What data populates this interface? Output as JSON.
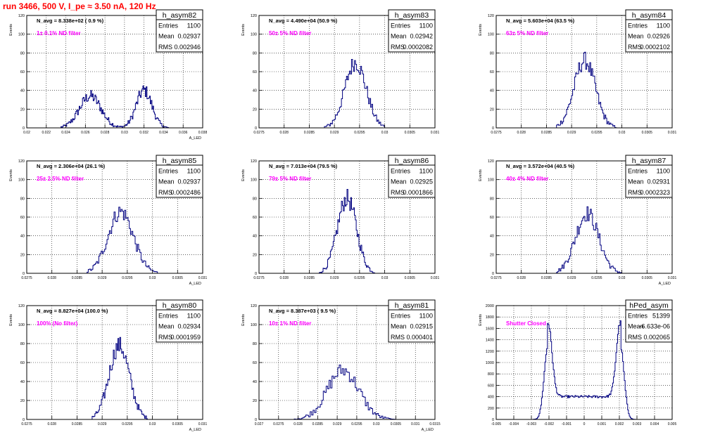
{
  "header": {
    "title": "run 3466,   500 V, I_pe ≈ 3.50 nA, 120 Hz"
  },
  "colors": {
    "histogram_line": "#000080",
    "annotation": "#ff00ff",
    "title_red": "#ff0000",
    "grid": "#000000"
  },
  "chart_data": [
    {
      "type": "bar",
      "name": "h_asym82",
      "stats": {
        "entries_label": "Entries",
        "entries": "1100",
        "mean_label": "Mean",
        "mean": "0.02937",
        "rms_label": "RMS",
        "rms": "0.002946"
      },
      "navg": "N_avg = 8.338e+02 ( 0.9 %)",
      "annotation": "1± 0.1% ND filter",
      "ylabel": "Events",
      "xlabel": "A_LED",
      "xlim": [
        0.02,
        0.038
      ],
      "ylim": [
        0,
        120
      ],
      "grid": true,
      "yticks": [
        0,
        20,
        40,
        60,
        80,
        100,
        120
      ],
      "xticks": [
        0.02,
        0.022,
        0.024,
        0.026,
        0.028,
        0.03,
        0.032,
        0.034,
        0.036,
        0.038
      ],
      "xtick_labels": [
        "0.02",
        "0.022",
        "0.024",
        "0.026",
        "0.028",
        "0.03",
        "0.032",
        "0.034",
        "0.036",
        "0.038"
      ],
      "dist": [
        {
          "mu": 0.0265,
          "sig": 0.0011,
          "a": 34
        },
        {
          "mu": 0.032,
          "sig": 0.0008,
          "a": 40
        }
      ],
      "range": [
        0.0235,
        0.0345
      ],
      "nbins": 130
    },
    {
      "type": "bar",
      "name": "h_asym83",
      "stats": {
        "entries_label": "Entries",
        "entries": "1100",
        "mean_label": "Mean",
        "mean": "0.02942",
        "rms_label": "RMS",
        "rms": "0.0002082"
      },
      "navg": "N_avg = 4.490e+04 (50.9 %)",
      "annotation": "50± 5% ND filter",
      "ylabel": "Events",
      "xlabel": "",
      "xlim": [
        0.0275,
        0.031
      ],
      "ylim": [
        0,
        120
      ],
      "grid": true,
      "yticks": [
        0,
        20,
        40,
        60,
        80,
        100,
        120
      ],
      "xticks": [
        0.0275,
        0.028,
        0.0285,
        0.029,
        0.0295,
        0.03,
        0.0305,
        0.031
      ],
      "xtick_labels": [
        "0.0275",
        "0.028",
        "0.0285",
        "0.029",
        "0.0295",
        "0.03",
        "0.0305",
        "0.031"
      ],
      "dist": [
        {
          "mu": 0.02942,
          "sig": 0.00021,
          "a": 70
        }
      ],
      "range": [
        0.0288,
        0.03
      ],
      "nbins": 60
    },
    {
      "type": "bar",
      "name": "h_asym84",
      "stats": {
        "entries_label": "Entries",
        "entries": "1100",
        "mean_label": "Mean",
        "mean": "0.02926",
        "rms_label": "RMS",
        "rms": "0.0002102"
      },
      "navg": "N_avg = 5.603e+04 (63.5 %)",
      "annotation": "63± 5% ND filter",
      "ylabel": "Events",
      "xlabel": "",
      "xlim": [
        0.0275,
        0.031
      ],
      "ylim": [
        0,
        120
      ],
      "grid": true,
      "yticks": [
        0,
        20,
        40,
        60,
        80,
        100,
        120
      ],
      "xticks": [
        0.0275,
        0.028,
        0.0285,
        0.029,
        0.0295,
        0.03,
        0.0305,
        0.031
      ],
      "xtick_labels": [
        "0.0275",
        "0.028",
        "0.0285",
        "0.029",
        "0.0295",
        "0.03",
        "0.0305",
        "0.031"
      ],
      "dist": [
        {
          "mu": 0.02926,
          "sig": 0.00021,
          "a": 72
        }
      ],
      "range": [
        0.0287,
        0.0299
      ],
      "nbins": 60
    },
    {
      "type": "bar",
      "name": "h_asym85",
      "stats": {
        "entries_label": "Entries",
        "entries": "1100",
        "mean_label": "Mean",
        "mean": "0.02937",
        "rms_label": "RMS",
        "rms": "0.0002486"
      },
      "navg": "N_avg = 2.306e+04 (26.1 %)",
      "annotation": "25± 2.5% ND filter",
      "ylabel": "Events",
      "xlabel": "A_LED",
      "xlim": [
        0.0275,
        0.031
      ],
      "ylim": [
        0,
        120
      ],
      "grid": true,
      "yticks": [
        0,
        20,
        40,
        60,
        80,
        100,
        120
      ],
      "xticks": [
        0.0275,
        0.028,
        0.0285,
        0.029,
        0.0295,
        0.03,
        0.0305,
        0.031
      ],
      "xtick_labels": [
        "0.0275",
        "0.028",
        "0.0285",
        "0.029",
        "0.0295",
        "0.03",
        "0.0305",
        "0.031"
      ],
      "dist": [
        {
          "mu": 0.02937,
          "sig": 0.00025,
          "a": 66
        }
      ],
      "range": [
        0.0287,
        0.0301
      ],
      "nbins": 60
    },
    {
      "type": "bar",
      "name": "h_asym86",
      "stats": {
        "entries_label": "Entries",
        "entries": "1100",
        "mean_label": "Mean",
        "mean": "0.02925",
        "rms_label": "RMS",
        "rms": "0.0001866"
      },
      "navg": "N_avg = 7.013e+04 (79.5 %)",
      "annotation": "79± 5% ND filter",
      "ylabel": "Events",
      "xlabel": "",
      "xlim": [
        0.0275,
        0.031
      ],
      "ylim": [
        0,
        120
      ],
      "grid": true,
      "yticks": [
        0,
        20,
        40,
        60,
        80,
        100,
        120
      ],
      "xticks": [
        0.0275,
        0.028,
        0.0285,
        0.029,
        0.0295,
        0.03,
        0.0305,
        0.031
      ],
      "xtick_labels": [
        "0.0275",
        "0.028",
        "0.0285",
        "0.029",
        "0.0295",
        "0.03",
        "0.0305",
        "0.031"
      ],
      "dist": [
        {
          "mu": 0.02925,
          "sig": 0.00019,
          "a": 80
        }
      ],
      "range": [
        0.0287,
        0.0298
      ],
      "nbins": 60
    },
    {
      "type": "bar",
      "name": "h_asym87",
      "stats": {
        "entries_label": "Entries",
        "entries": "1100",
        "mean_label": "Mean",
        "mean": "0.02931",
        "rms_label": "RMS",
        "rms": "0.0002323"
      },
      "navg": "N_avg = 3.572e+04 (40.5 %)",
      "annotation": "40± 4% ND filter",
      "ylabel": "Events",
      "xlabel": "A_LED",
      "xlim": [
        0.0275,
        0.031
      ],
      "ylim": [
        0,
        120
      ],
      "grid": true,
      "yticks": [
        0,
        20,
        40,
        60,
        80,
        100,
        120
      ],
      "xticks": [
        0.0275,
        0.028,
        0.0285,
        0.029,
        0.0295,
        0.03,
        0.0305,
        0.031
      ],
      "xtick_labels": [
        "0.0275",
        "0.028",
        "0.0285",
        "0.029",
        "0.0295",
        "0.03",
        "0.0305",
        "0.031"
      ],
      "dist": [
        {
          "mu": 0.02931,
          "sig": 0.00023,
          "a": 64
        }
      ],
      "range": [
        0.0287,
        0.03
      ],
      "nbins": 60
    },
    {
      "type": "bar",
      "name": "h_asym80",
      "stats": {
        "entries_label": "Entries",
        "entries": "1100",
        "mean_label": "Mean",
        "mean": "0.02934",
        "rms_label": "RMS",
        "rms": "0.0001959"
      },
      "navg": "N_avg = 8.827e+04 (100.0 %)",
      "annotation": "100% (No filter)",
      "ylabel": "Events",
      "xlabel": "A_LED",
      "xlim": [
        0.0275,
        0.031
      ],
      "ylim": [
        0,
        120
      ],
      "grid": true,
      "yticks": [
        0,
        20,
        40,
        60,
        80,
        100,
        120
      ],
      "xticks": [
        0.0275,
        0.028,
        0.0285,
        0.029,
        0.0295,
        0.03,
        0.0305,
        0.031
      ],
      "xtick_labels": [
        "0.0275",
        "0.028",
        "0.0285",
        "0.029",
        "0.0295",
        "0.03",
        "0.0305",
        "0.031"
      ],
      "dist": [
        {
          "mu": 0.02934,
          "sig": 0.0002,
          "a": 78
        }
      ],
      "range": [
        0.0288,
        0.0299
      ],
      "nbins": 60
    },
    {
      "type": "bar",
      "name": "h_asym81",
      "stats": {
        "entries_label": "Entries",
        "entries": "1100",
        "mean_label": "Mean",
        "mean": "0.02915",
        "rms_label": "RMS",
        "rms": "0.000401"
      },
      "navg": "N_avg = 8.387e+03 ( 9.5 %)",
      "annotation": "10± 1% ND filter",
      "ylabel": "Events",
      "xlabel": "A_LED",
      "xlim": [
        0.027,
        0.0315
      ],
      "ylim": [
        0,
        120
      ],
      "grid": true,
      "yticks": [
        0,
        20,
        40,
        60,
        80,
        100,
        120
      ],
      "xticks": [
        0.027,
        0.0275,
        0.028,
        0.0285,
        0.029,
        0.0295,
        0.03,
        0.0305,
        0.031,
        0.0315
      ],
      "xtick_labels": [
        "0.027",
        "0.0275",
        "0.028",
        "0.0285",
        "0.029",
        "0.0295",
        "0.03",
        "0.0305",
        "0.031",
        "0.0315"
      ],
      "dist": [
        {
          "mu": 0.02915,
          "sig": 0.0004,
          "a": 52
        }
      ],
      "range": [
        0.0279,
        0.0305
      ],
      "nbins": 70
    },
    {
      "type": "bar",
      "name": "hPed_asym",
      "stats": {
        "entries_label": "Entries",
        "entries": "51399",
        "mean_label": "Mean",
        "mean": "-6.633e-06",
        "rms_label": "RMS",
        "rms": "0.002065"
      },
      "navg": "",
      "annotation": "Shutter Closed",
      "ylabel": "Events",
      "xlabel": "",
      "xlim": [
        -0.005,
        0.005
      ],
      "ylim": [
        0,
        2000
      ],
      "grid": true,
      "yticks": [
        0,
        200,
        400,
        600,
        800,
        1000,
        1200,
        1400,
        1600,
        1800,
        2000
      ],
      "xticks": [
        -0.005,
        -0.004,
        -0.003,
        -0.002,
        -0.001,
        0,
        0.001,
        0.002,
        0.003,
        0.004,
        0.005
      ],
      "xtick_labels": [
        "-0.005",
        "-0.004",
        "-0.003",
        "-0.002",
        "-0.001",
        "0",
        "0.001",
        "0.002",
        "0.003",
        "0.004",
        "0.005"
      ],
      "dist": [
        {
          "mu": -0.00205,
          "sig": 0.00022,
          "a": 1300
        },
        {
          "mu": 0.00205,
          "sig": 0.00022,
          "a": 1300
        }
      ],
      "baseline": 400,
      "baseline_range": [
        -0.0021,
        0.0021
      ],
      "range": [
        -0.0038,
        0.0038
      ],
      "nbins": 160
    }
  ]
}
